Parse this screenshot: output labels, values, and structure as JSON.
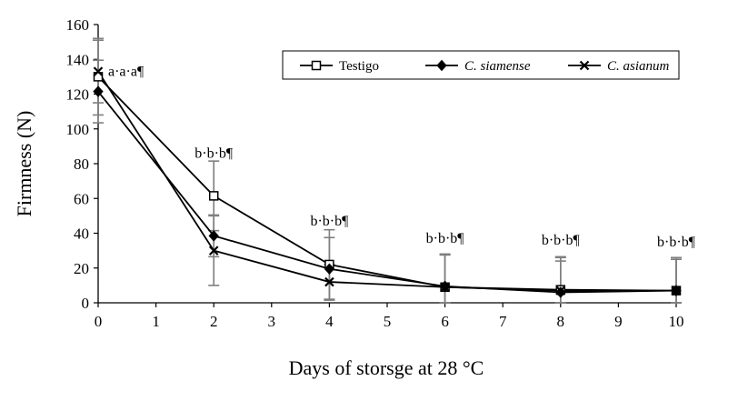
{
  "chart_data": {
    "type": "line",
    "xlabel": "Days of storsge at 28 °C",
    "ylabel": "Firmness (N)",
    "xlim": [
      0,
      10
    ],
    "ylim": [
      0,
      160
    ],
    "xticks": [
      0,
      1,
      2,
      3,
      4,
      5,
      6,
      7,
      8,
      9,
      10
    ],
    "yticks": [
      0,
      20,
      40,
      60,
      80,
      100,
      120,
      140,
      160
    ],
    "grid": false,
    "legend_position": "top-right",
    "series": [
      {
        "name": "Testigo",
        "marker": "open-square",
        "italic": false,
        "x": [
          0,
          2,
          4,
          6,
          8,
          10
        ],
        "y": [
          130,
          61.5,
          22,
          9,
          7.5,
          7
        ],
        "err": [
          22,
          20,
          20,
          19,
          19,
          19
        ]
      },
      {
        "name": "C. siamense",
        "marker": "filled-diamond",
        "italic": true,
        "x": [
          0,
          2,
          4,
          6,
          8,
          10
        ],
        "y": [
          121.5,
          38.5,
          19.5,
          9.5,
          6,
          7
        ],
        "err": [
          18,
          12,
          18,
          18,
          18,
          18
        ]
      },
      {
        "name": "C. asianum",
        "marker": "cross",
        "italic": true,
        "x": [
          0,
          2,
          4,
          6,
          8,
          10
        ],
        "y": [
          133,
          30,
          12,
          9,
          7,
          7
        ],
        "err": [
          18,
          20,
          10,
          19,
          19,
          19
        ]
      }
    ],
    "annotations": [
      {
        "x": 0,
        "text": "a·a·a¶",
        "y": 133
      },
      {
        "x": 2,
        "text": "b·b·b¶",
        "y": 86
      },
      {
        "x": 4,
        "text": "b·b·b¶",
        "y": 47
      },
      {
        "x": 6,
        "text": "b·b·b¶",
        "y": 37
      },
      {
        "x": 8,
        "text": "b·b·b¶",
        "y": 36
      },
      {
        "x": 10,
        "text": "b·b·b¶",
        "y": 35
      }
    ]
  }
}
